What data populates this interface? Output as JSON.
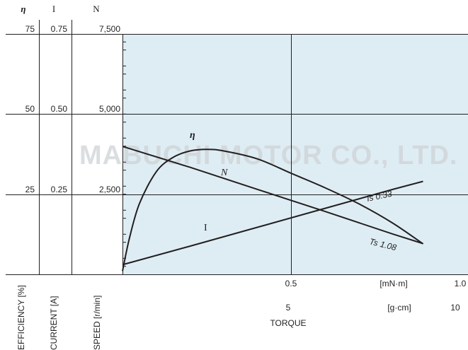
{
  "chart_data": {
    "type": "line",
    "columns": [
      {
        "symbol": "η",
        "label": "EFFICIENCY [%]",
        "ticks": [
          "75",
          "50",
          "25"
        ]
      },
      {
        "symbol": "I",
        "label": "CURRENT [A]",
        "ticks": [
          "0.75",
          "0.50",
          "0.25"
        ]
      },
      {
        "symbol": "N",
        "label": "SPEED [r/min]",
        "ticks": [
          "7,500",
          "5,000",
          "2,500"
        ]
      }
    ],
    "x_axis": {
      "label": "TORQUE",
      "units_primary": "[mN·m]",
      "ticks_primary": [
        "0.5",
        "1.0"
      ],
      "units_secondary": "[g·cm]",
      "ticks_secondary": [
        "5",
        "10"
      ],
      "range": [
        0,
        1.0
      ]
    },
    "y_axes": {
      "speed": {
        "range": [
          0,
          7500
        ]
      },
      "current": {
        "range": [
          0,
          0.75
        ]
      },
      "efficiency": {
        "range": [
          0,
          75
        ]
      }
    },
    "grid": true,
    "series": [
      {
        "name": "N",
        "axis": "speed",
        "x": [
          0,
          0.2,
          0.4,
          0.6,
          0.8,
          0.89
        ],
        "y": [
          3990,
          3340,
          2650,
          1960,
          1260,
          960
        ],
        "end_label": "Ts 1.08"
      },
      {
        "name": "I",
        "axis": "current",
        "x": [
          0,
          0.2,
          0.4,
          0.6,
          0.8,
          0.89
        ],
        "y": [
          0.03,
          0.088,
          0.147,
          0.206,
          0.265,
          0.29
        ],
        "end_label": "Is 0.33"
      },
      {
        "name": "η",
        "axis": "efficiency",
        "x": [
          0,
          0.02,
          0.05,
          0.1,
          0.15,
          0.2,
          0.25,
          0.3,
          0.4,
          0.5,
          0.6,
          0.7,
          0.8,
          0.89
        ],
        "y": [
          1,
          11,
          22,
          32,
          36.5,
          38.5,
          39,
          38.5,
          36,
          31.5,
          27,
          22,
          16,
          9.5
        ]
      }
    ],
    "watermark": "MABUCHI MOTOR CO., LTD."
  }
}
